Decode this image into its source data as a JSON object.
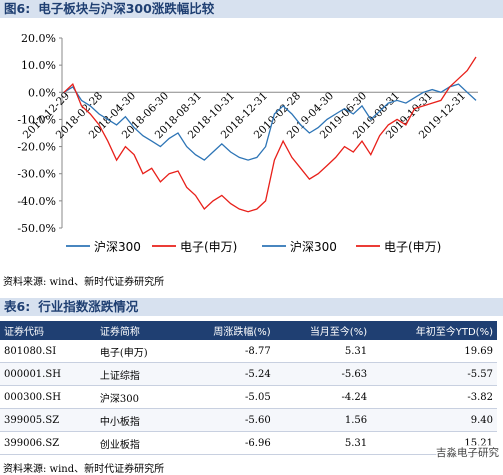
{
  "fig6": {
    "label": "图6:",
    "title": "电子板块与沪深300涨跌幅比较"
  },
  "source1": "资料来源: wind、新时代证券研究所",
  "table6": {
    "label": "表6:",
    "title": "行业指数涨跌情况",
    "headers": [
      "证券代码",
      "证券简称",
      "周涨跌幅(%)",
      "当月至今(%)",
      "年初至今YTD(%)"
    ],
    "rows": [
      [
        "801080.SI",
        "电子(申万)",
        "-8.77",
        "5.31",
        "19.69"
      ],
      [
        "000001.SH",
        "上证综指",
        "-5.24",
        "-5.63",
        "-5.57"
      ],
      [
        "000300.SH",
        "沪深300",
        "-5.05",
        "-4.24",
        "-3.82"
      ],
      [
        "399005.SZ",
        "中小板指",
        "-5.60",
        "1.56",
        "9.40"
      ],
      [
        "399006.SZ",
        "创业板指",
        "-6.96",
        "5.31",
        "15.21"
      ]
    ]
  },
  "source2": "资料来源: wind、新时代证券研究所",
  "watermark": "吉淼电子研究",
  "chart_data": {
    "type": "line",
    "ylim": [
      -50,
      20
    ],
    "ytick_labels": [
      "20.0%",
      "10.0%",
      "0.0%",
      "-10.0%",
      "-20.0%",
      "-30.0%",
      "-40.0%",
      "-50.0%"
    ],
    "ytick_values": [
      20,
      10,
      0,
      -10,
      -20,
      -30,
      -40,
      -50
    ],
    "xtick_labels": [
      "2017-12-29",
      "2018-02-28",
      "2018-04-30",
      "2018-06-30",
      "2018-08-31",
      "2018-10-31",
      "2018-12-31",
      "2019-02-28",
      "2019-04-30",
      "2019-06-30",
      "2019-08-31",
      "2019-10-31",
      "2019-12-31"
    ],
    "legend": [
      "沪深300",
      "电子(申万)",
      "沪深300",
      "电子(申万)"
    ],
    "legend_position": "bottom",
    "colors": {
      "hs300": "#2e75b6",
      "elec": "#e8201a"
    },
    "series": [
      {
        "name": "沪深300",
        "values": [
          0,
          2,
          -3,
          -5,
          -8,
          -10,
          -12,
          -9,
          -13,
          -16,
          -18,
          -20,
          -17,
          -15,
          -20,
          -23,
          -25,
          -22,
          -19,
          -22,
          -24,
          -25,
          -24,
          -20,
          -8,
          -5,
          -8,
          -12,
          -15,
          -13,
          -10,
          -8,
          -6,
          -8,
          -5,
          -10,
          -7,
          -4,
          -3,
          -4,
          -2,
          0,
          1,
          0,
          2,
          3,
          0,
          -3
        ]
      },
      {
        "name": "电子(申万)",
        "values": [
          0,
          3,
          -5,
          -8,
          -12,
          -18,
          -25,
          -20,
          -23,
          -30,
          -28,
          -33,
          -30,
          -29,
          -35,
          -38,
          -43,
          -40,
          -38,
          -41,
          -43,
          -44,
          -43,
          -40,
          -25,
          -18,
          -24,
          -28,
          -32,
          -30,
          -27,
          -24,
          -20,
          -22,
          -18,
          -23,
          -16,
          -12,
          -10,
          -12,
          -6,
          -5,
          -4,
          -3,
          2,
          5,
          8,
          13
        ]
      }
    ]
  }
}
